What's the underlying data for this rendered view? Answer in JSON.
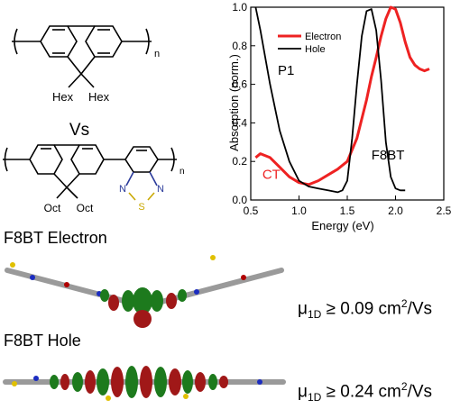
{
  "structures": {
    "p1_substituents": [
      "Hex",
      "Hex"
    ],
    "p1_repeat": "n",
    "versus": "Vs",
    "f8bt_substituents": [
      "Oct",
      "Oct"
    ],
    "f8bt_repeat": "n",
    "heteroatoms": [
      "N",
      "S",
      "N"
    ]
  },
  "chart_data": {
    "type": "line",
    "xlabel": "Energy (eV)",
    "ylabel": "Absorption (norm.)",
    "xlim": [
      0.5,
      2.5
    ],
    "ylim": [
      0.0,
      1.0
    ],
    "x_ticks": [
      "0.5",
      "1.0",
      "1.5",
      "2.0",
      "2.5"
    ],
    "y_ticks": [
      "0.0",
      "0.2",
      "0.4",
      "0.6",
      "0.8",
      "1.0"
    ],
    "legend_position": "top-right",
    "series": [
      {
        "name": "Electron",
        "color": "#ee2222",
        "x": [
          0.55,
          0.6,
          0.7,
          0.8,
          0.9,
          1.0,
          1.1,
          1.2,
          1.3,
          1.4,
          1.5,
          1.6,
          1.7,
          1.75,
          1.8,
          1.85,
          1.9,
          1.95,
          2.0,
          2.05,
          2.1,
          2.15,
          2.2,
          2.25,
          2.3,
          2.35
        ],
        "y": [
          0.22,
          0.24,
          0.22,
          0.17,
          0.12,
          0.09,
          0.08,
          0.1,
          0.13,
          0.16,
          0.2,
          0.32,
          0.52,
          0.64,
          0.74,
          0.85,
          0.94,
          1.0,
          0.99,
          0.92,
          0.82,
          0.74,
          0.7,
          0.68,
          0.67,
          0.68
        ]
      },
      {
        "name": "Hole",
        "color": "#000000",
        "x": [
          0.55,
          0.6,
          0.7,
          0.8,
          0.9,
          1.0,
          1.1,
          1.2,
          1.3,
          1.4,
          1.45,
          1.5,
          1.55,
          1.6,
          1.65,
          1.7,
          1.75,
          1.8,
          1.85,
          1.9,
          1.95,
          2.0,
          2.05,
          2.1
        ],
        "y": [
          1.0,
          0.88,
          0.6,
          0.36,
          0.2,
          0.1,
          0.07,
          0.06,
          0.05,
          0.04,
          0.05,
          0.1,
          0.32,
          0.6,
          0.85,
          0.98,
          0.99,
          0.88,
          0.62,
          0.3,
          0.12,
          0.06,
          0.05,
          0.05
        ]
      }
    ],
    "annotations": [
      {
        "text": "P1",
        "x": 0.78,
        "y": 0.65,
        "color": "#000000"
      },
      {
        "text": "CT",
        "x": 0.62,
        "y": 0.11,
        "color": "#ee2222"
      },
      {
        "text": "F8BT",
        "x": 1.75,
        "y": 0.21,
        "color": "#000000"
      }
    ]
  },
  "orbitals": {
    "electron_caption": "F8BT Electron",
    "electron_mobility": {
      "symbol": "μ",
      "sub": "1D",
      "rel": "≥ 0.09 cm",
      "exp": "2",
      "unit": "/Vs"
    },
    "hole_caption": "F8BT Hole",
    "hole_mobility": {
      "symbol": "μ",
      "sub": "1D",
      "rel": "≥ 0.24 cm",
      "exp": "2",
      "unit": "/Vs"
    }
  }
}
